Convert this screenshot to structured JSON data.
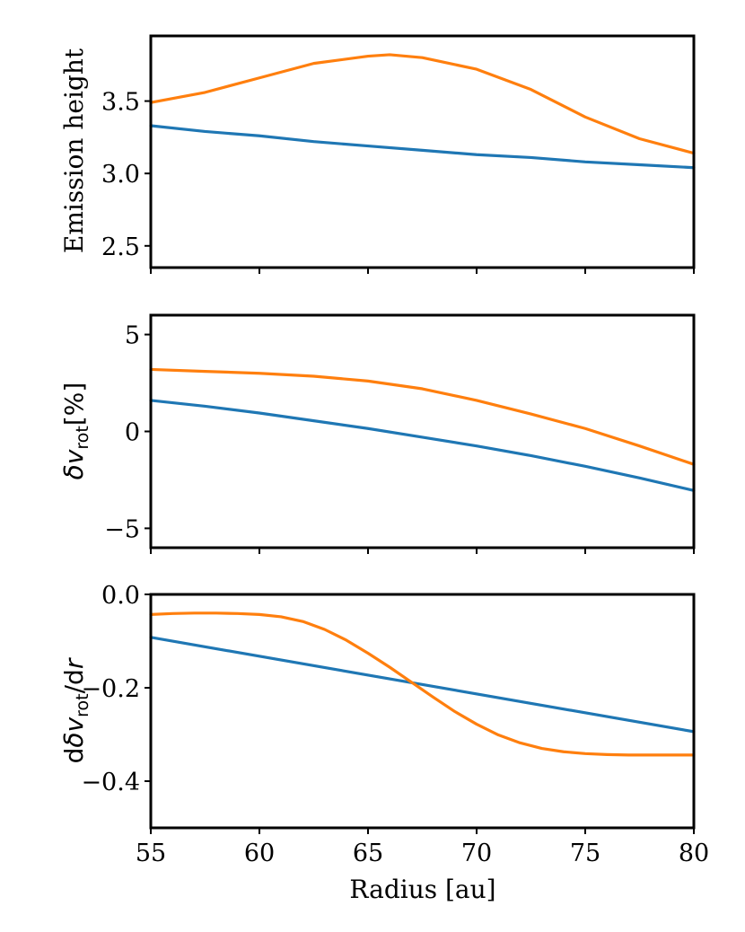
{
  "chart_data": [
    {
      "type": "line",
      "xlabel": "",
      "ylabel": "Emission height",
      "xlim": [
        55,
        80
      ],
      "ylim": [
        2.35,
        3.95
      ],
      "xticks": [
        55,
        60,
        65,
        70,
        75,
        80
      ],
      "yticks": [
        2.5,
        3.0,
        3.5
      ],
      "ytick_labels": [
        "2.5",
        "3.0",
        "3.5"
      ],
      "series": [
        {
          "name": "blue",
          "color": "#1f77b4",
          "x": [
            55,
            57.5,
            60,
            62.5,
            65,
            67.5,
            70,
            72.5,
            75,
            77.5,
            80
          ],
          "y": [
            3.33,
            3.29,
            3.26,
            3.22,
            3.19,
            3.16,
            3.13,
            3.11,
            3.08,
            3.06,
            3.04
          ]
        },
        {
          "name": "orange",
          "color": "#ff7f0e",
          "x": [
            55,
            57.5,
            60,
            62.5,
            65,
            66,
            67.5,
            70,
            72.5,
            75,
            77.5,
            80
          ],
          "y": [
            3.49,
            3.56,
            3.66,
            3.76,
            3.81,
            3.82,
            3.8,
            3.72,
            3.58,
            3.39,
            3.24,
            3.14
          ]
        }
      ]
    },
    {
      "type": "line",
      "xlabel": "",
      "ylabel_parts": {
        "delta": "δ",
        "v": "v",
        "sub": "rot",
        "rest": "[%]"
      },
      "xlim": [
        55,
        80
      ],
      "ylim": [
        -6,
        6
      ],
      "xticks": [
        55,
        60,
        65,
        70,
        75,
        80
      ],
      "yticks": [
        -5,
        0,
        5
      ],
      "ytick_labels": [
        "−5",
        "0",
        "5"
      ],
      "series": [
        {
          "name": "blue",
          "color": "#1f77b4",
          "x": [
            55,
            57.5,
            60,
            62.5,
            65,
            67.5,
            70,
            72.5,
            75,
            77.5,
            80
          ],
          "y": [
            1.6,
            1.3,
            0.95,
            0.55,
            0.15,
            -0.3,
            -0.75,
            -1.25,
            -1.8,
            -2.4,
            -3.05
          ]
        },
        {
          "name": "orange",
          "color": "#ff7f0e",
          "x": [
            55,
            57.5,
            60,
            62.5,
            65,
            67.5,
            70,
            72.5,
            75,
            77.5,
            80
          ],
          "y": [
            3.2,
            3.1,
            3.0,
            2.85,
            2.6,
            2.2,
            1.6,
            0.9,
            0.15,
            -0.75,
            -1.7
          ]
        }
      ]
    },
    {
      "type": "line",
      "xlabel": "Radius [au]",
      "ylabel_parts": {
        "d": "d",
        "delta": "δ",
        "v": "v",
        "sub": "rot",
        "rest": "/d",
        "r": "r"
      },
      "xlim": [
        55,
        80
      ],
      "ylim": [
        -0.5,
        0.0
      ],
      "xticks": [
        55,
        60,
        65,
        70,
        75,
        80
      ],
      "xtick_labels": [
        "55",
        "60",
        "65",
        "70",
        "75",
        "80"
      ],
      "yticks": [
        -0.4,
        -0.2,
        0.0
      ],
      "ytick_labels": [
        "−0.4",
        "−0.2",
        "0.0"
      ],
      "series": [
        {
          "name": "blue",
          "color": "#1f77b4",
          "x": [
            55,
            80
          ],
          "y": [
            -0.092,
            -0.294
          ]
        },
        {
          "name": "orange",
          "color": "#ff7f0e",
          "x": [
            55,
            56,
            57,
            58,
            59,
            60,
            61,
            62,
            63,
            64,
            65,
            66,
            67,
            68,
            69,
            70,
            71,
            72,
            73,
            74,
            75,
            76,
            77,
            78,
            79,
            80
          ],
          "y": [
            -0.043,
            -0.041,
            -0.04,
            -0.04,
            -0.041,
            -0.043,
            -0.048,
            -0.058,
            -0.075,
            -0.098,
            -0.126,
            -0.156,
            -0.188,
            -0.22,
            -0.251,
            -0.278,
            -0.301,
            -0.318,
            -0.33,
            -0.337,
            -0.341,
            -0.343,
            -0.344,
            -0.344,
            -0.344,
            -0.344
          ]
        }
      ]
    }
  ]
}
